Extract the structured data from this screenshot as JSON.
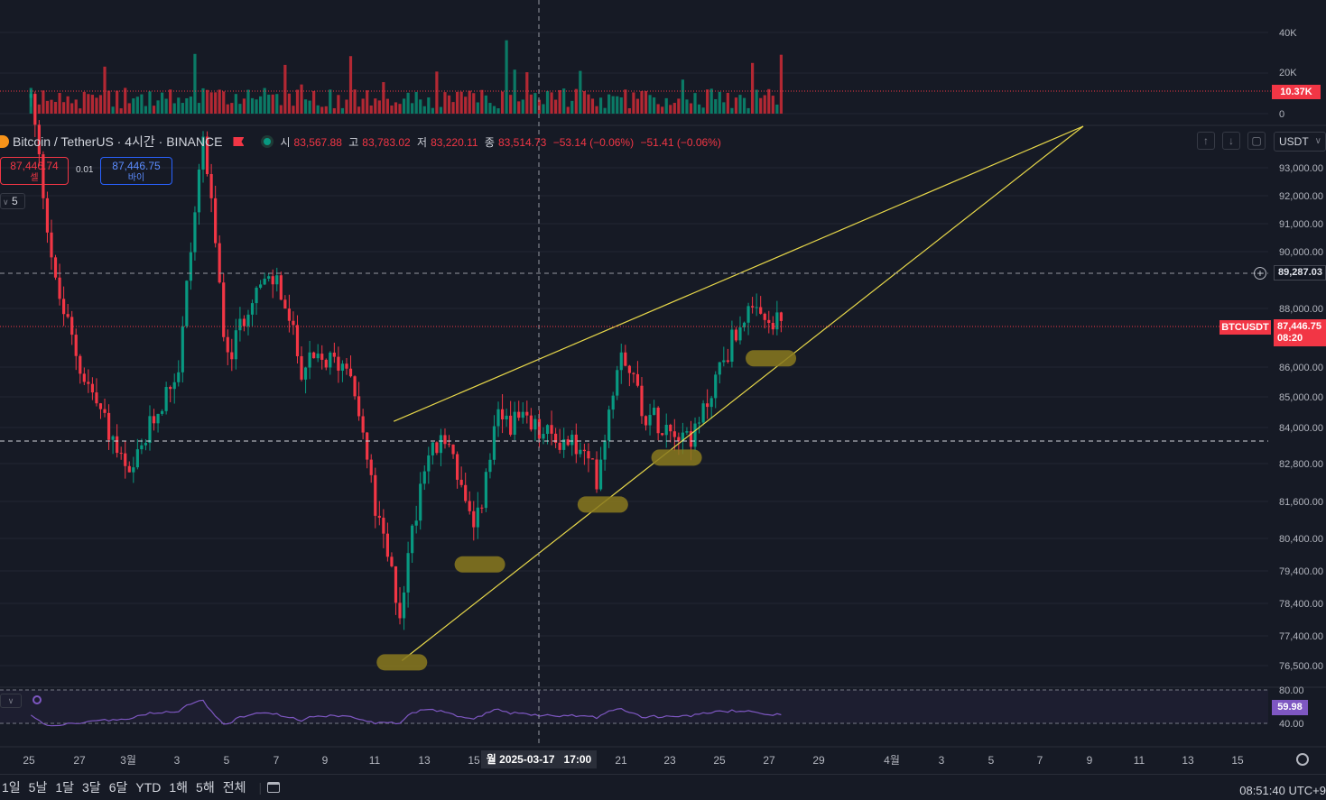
{
  "header": {
    "symbol_title": "Bitcoin / TetherUS · 4시간 · BINANCE",
    "open_label": "시",
    "open": "83,567.88",
    "high_label": "고",
    "high": "83,783.02",
    "low_label": "저",
    "low": "83,220.11",
    "close_label": "종",
    "close": "83,514.73",
    "change": "−53.14 (−0.06%)",
    "change2": "−51.41 (−0.06%)"
  },
  "trade": {
    "sell_price": "87,446.74",
    "sell_label": "셀",
    "spread": "0.01",
    "buy_price": "87,446.75",
    "buy_label": "바이"
  },
  "indicator_toggle": "5",
  "currency_select": "USDT",
  "price_axis": {
    "ticks": [
      "93,000.00",
      "92,000.00",
      "91,000.00",
      "90,000.00",
      "88,000.00",
      "86,000.00",
      "85,000.00",
      "84,000.00",
      "82,800.00",
      "81,600.00",
      "80,400.00",
      "79,400.00",
      "78,400.00",
      "77,400.00",
      "76,500.00"
    ],
    "crosshair_price": "89,287.03",
    "symbol_label": "BTCUSDT",
    "last_price": "87,446.75",
    "countdown": "08:20"
  },
  "volume_axis": {
    "ticks": [
      "40K",
      "20K",
      "0"
    ],
    "current": "10.37K"
  },
  "rsi_axis": {
    "ticks": [
      "80.00",
      "40.00"
    ],
    "current": "59.98"
  },
  "time_axis": {
    "ticks": [
      "25",
      "27",
      "3월",
      "3",
      "5",
      "7",
      "9",
      "11",
      "13",
      "15",
      "21",
      "23",
      "25",
      "27",
      "29",
      "4월",
      "3",
      "5",
      "7",
      "9",
      "11",
      "13",
      "15"
    ],
    "crosshair_label": "월 2025-03-17   17:00"
  },
  "timeframes": [
    "1일",
    "5날",
    "1달",
    "3달",
    "6달",
    "YTD",
    "1해",
    "5해",
    "전체"
  ],
  "clock": "08:51:40 UTC+9",
  "colors": {
    "up": "#089981",
    "down": "#f23645",
    "trendline": "#e8d84a",
    "highlight": "#8a7a1e",
    "rsi": "#7e57c2",
    "background": "#161a25"
  },
  "chart_data": {
    "type": "candlestick",
    "title": "Bitcoin / TetherUS · 4시간 · BINANCE",
    "timeframe": "4h",
    "x_range": [
      "2025-02-24",
      "2025-04-16"
    ],
    "ylim": [
      76000,
      93800
    ],
    "annotations": [
      {
        "type": "rising_wedge_upper",
        "from": {
          "x": "2025-03-10 20:00",
          "y": 84200
        },
        "to": {
          "x": "2025-04-08 12:00",
          "y": 98500
        }
      },
      {
        "type": "rising_wedge_lower",
        "from": {
          "x": "2025-03-11 04:00",
          "y": 76650
        },
        "to": {
          "x": "2025-04-08 12:00",
          "y": 98500
        }
      },
      {
        "type": "highlight",
        "x": "2025-03-11 04:00",
        "y": 76600
      },
      {
        "type": "highlight",
        "x": "2025-03-14 08:00",
        "y": 79600
      },
      {
        "type": "highlight",
        "x": "2025-03-19 08:00",
        "y": 81500
      },
      {
        "type": "highlight",
        "x": "2025-03-22 08:00",
        "y": 83000
      },
      {
        "type": "highlight",
        "x": "2025-03-26 04:00",
        "y": 86300
      }
    ],
    "series": [
      {
        "name": "BTCUSDT",
        "close_path": [
          [
            "2025-02-24",
            95500
          ],
          [
            "2025-02-25",
            88800
          ],
          [
            "2025-02-26",
            86000
          ],
          [
            "2025-02-27",
            84200
          ],
          [
            "2025-02-28",
            82200
          ],
          [
            "2025-03-01",
            84300
          ],
          [
            "2025-03-02",
            86000
          ],
          [
            "2025-03-03",
            94200
          ],
          [
            "2025-03-04",
            86100
          ],
          [
            "2025-03-05",
            88600
          ],
          [
            "2025-03-06",
            89000
          ],
          [
            "2025-03-07",
            86000
          ],
          [
            "2025-03-08",
            86200
          ],
          [
            "2025-03-09",
            86100
          ],
          [
            "2025-03-10",
            81300
          ],
          [
            "2025-03-11",
            78200
          ],
          [
            "2025-03-12",
            83000
          ],
          [
            "2025-03-13",
            83600
          ],
          [
            "2025-03-14",
            80400
          ],
          [
            "2025-03-15",
            84300
          ],
          [
            "2025-03-16",
            84100
          ],
          [
            "2025-03-17",
            83700
          ],
          [
            "2025-03-18",
            83500
          ],
          [
            "2025-03-19",
            82400
          ],
          [
            "2025-03-20",
            86800
          ],
          [
            "2025-03-21",
            84400
          ],
          [
            "2025-03-22",
            84100
          ],
          [
            "2025-03-23",
            83700
          ],
          [
            "2025-03-24",
            86000
          ],
          [
            "2025-03-25",
            87800
          ],
          [
            "2025-03-26",
            87446.75
          ]
        ]
      },
      {
        "name": "Volume",
        "ylim": [
          0,
          55000
        ],
        "current": 10370
      },
      {
        "name": "RSI",
        "ylim": [
          20,
          90
        ],
        "current": 59.98,
        "bands": [
          40,
          80
        ]
      }
    ]
  }
}
